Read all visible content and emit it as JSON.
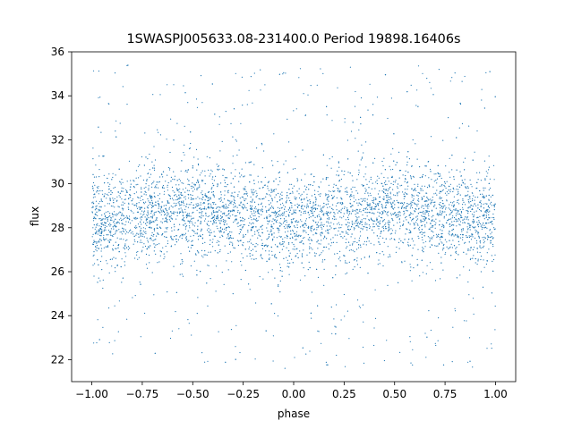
{
  "chart_data": {
    "type": "scatter",
    "title": "1SWASPJ005633.08-231400.0 Period 19898.16406s",
    "xlabel": "phase",
    "ylabel": "flux",
    "xlim": [
      -1.1,
      1.1
    ],
    "ylim": [
      21,
      36
    ],
    "xticks": [
      -1.0,
      -0.75,
      -0.5,
      -0.25,
      0.0,
      0.25,
      0.5,
      0.75,
      1.0
    ],
    "xtick_labels": [
      "−1.00",
      "−0.75",
      "−0.50",
      "−0.25",
      "0.00",
      "0.25",
      "0.50",
      "0.75",
      "1.00"
    ],
    "yticks": [
      22,
      24,
      26,
      28,
      30,
      32,
      34,
      36
    ],
    "ytick_labels": [
      "22",
      "24",
      "26",
      "28",
      "30",
      "32",
      "34",
      "36"
    ],
    "grid": false,
    "point_color": "#1f77b4",
    "x_range": [
      -1.0,
      1.0
    ],
    "y_clip": [
      21.6,
      35.4
    ],
    "density_profile": {
      "description": "phase-folded light curve, dense band centred on the mean flux with a sinusoidal modulation; mean and spread per phase",
      "phase": [
        -1.0,
        -0.75,
        -0.5,
        -0.25,
        0.0,
        0.25,
        0.5,
        0.75,
        1.0
      ],
      "mean_flux": [
        28.2,
        28.6,
        28.9,
        28.6,
        28.2,
        28.6,
        28.9,
        28.6,
        28.2
      ],
      "core_sigma": [
        1.05,
        1.05,
        1.05,
        1.05,
        1.05,
        1.05,
        1.05,
        1.05,
        1.05
      ],
      "outlier_fraction": 0.12
    }
  }
}
